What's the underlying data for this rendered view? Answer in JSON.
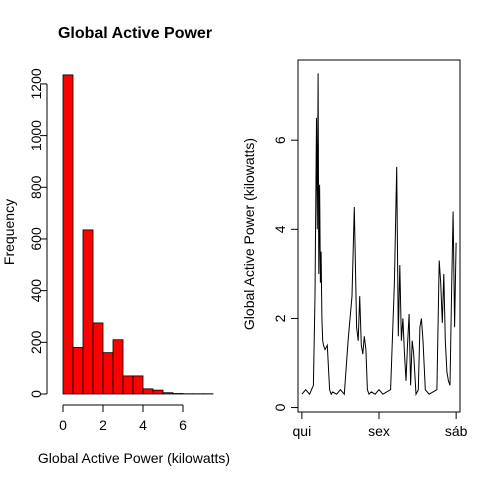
{
  "chart_data": [
    {
      "type": "bar",
      "title": "Global Active Power",
      "xlabel": "Global Active Power (kilowatts)",
      "ylabel": "Frequency",
      "xlim": [
        0,
        7.5
      ],
      "ylim": [
        0,
        1250
      ],
      "xticks": [
        0,
        2,
        4,
        6
      ],
      "yticks": [
        0,
        200,
        400,
        600,
        800,
        1000,
        1200
      ],
      "bins": [
        {
          "start": 0.0,
          "end": 0.5,
          "value": 1235
        },
        {
          "start": 0.5,
          "end": 1.0,
          "value": 180
        },
        {
          "start": 1.0,
          "end": 1.5,
          "value": 635
        },
        {
          "start": 1.5,
          "end": 2.0,
          "value": 275
        },
        {
          "start": 2.0,
          "end": 2.5,
          "value": 160
        },
        {
          "start": 2.5,
          "end": 3.0,
          "value": 210
        },
        {
          "start": 3.0,
          "end": 3.5,
          "value": 70
        },
        {
          "start": 3.5,
          "end": 4.0,
          "value": 70
        },
        {
          "start": 4.0,
          "end": 4.5,
          "value": 20
        },
        {
          "start": 4.5,
          "end": 5.0,
          "value": 15
        },
        {
          "start": 5.0,
          "end": 5.5,
          "value": 5
        },
        {
          "start": 5.5,
          "end": 6.0,
          "value": 2
        },
        {
          "start": 6.0,
          "end": 6.5,
          "value": 1
        },
        {
          "start": 6.5,
          "end": 7.0,
          "value": 1
        },
        {
          "start": 7.0,
          "end": 7.5,
          "value": 1
        }
      ],
      "color": "#ff0000"
    },
    {
      "type": "line",
      "title": "",
      "xlabel": "",
      "ylabel": "Global Active Power (kilowatts)",
      "xlim": [
        -0.05,
        2.05
      ],
      "ylim": [
        -0.1,
        7.8
      ],
      "xticks": [
        0,
        1,
        2
      ],
      "xticklabels": [
        "qui",
        "sex",
        "sáb"
      ],
      "yticks": [
        0,
        2,
        4,
        6
      ],
      "color": "#000000",
      "x": [
        0.0,
        0.05,
        0.1,
        0.15,
        0.17,
        0.19,
        0.2,
        0.21,
        0.22,
        0.23,
        0.24,
        0.25,
        0.26,
        0.27,
        0.28,
        0.3,
        0.33,
        0.36,
        0.38,
        0.4,
        0.45,
        0.5,
        0.55,
        0.6,
        0.65,
        0.68,
        0.71,
        0.73,
        0.75,
        0.77,
        0.79,
        0.81,
        0.83,
        0.85,
        0.87,
        0.9,
        0.95,
        1.0,
        1.05,
        1.1,
        1.15,
        1.2,
        1.23,
        1.25,
        1.27,
        1.29,
        1.31,
        1.33,
        1.35,
        1.37,
        1.39,
        1.41,
        1.43,
        1.45,
        1.48,
        1.51,
        1.53,
        1.55,
        1.57,
        1.6,
        1.65,
        1.7,
        1.75,
        1.78,
        1.8,
        1.82,
        1.84,
        1.86,
        1.88,
        1.9,
        1.92,
        1.94,
        1.96,
        1.98,
        2.0
      ],
      "y": [
        0.3,
        0.4,
        0.3,
        0.5,
        2.5,
        6.5,
        4.0,
        7.5,
        3.0,
        5.0,
        2.8,
        3.5,
        2.0,
        1.5,
        1.4,
        1.3,
        1.4,
        0.4,
        0.3,
        0.35,
        0.3,
        0.4,
        0.3,
        1.5,
        2.5,
        4.5,
        1.8,
        1.5,
        2.5,
        1.4,
        1.2,
        1.6,
        1.3,
        0.4,
        0.3,
        0.35,
        0.3,
        0.4,
        0.3,
        0.35,
        0.4,
        2.8,
        5.4,
        1.6,
        3.2,
        1.5,
        2.0,
        1.2,
        0.6,
        1.4,
        2.1,
        0.5,
        1.5,
        1.2,
        0.3,
        0.4,
        1.8,
        2.0,
        1.5,
        0.4,
        0.3,
        0.35,
        0.4,
        3.3,
        2.8,
        1.9,
        3.0,
        1.5,
        0.8,
        0.6,
        0.5,
        2.5,
        4.4,
        1.8,
        3.7
      ]
    }
  ]
}
